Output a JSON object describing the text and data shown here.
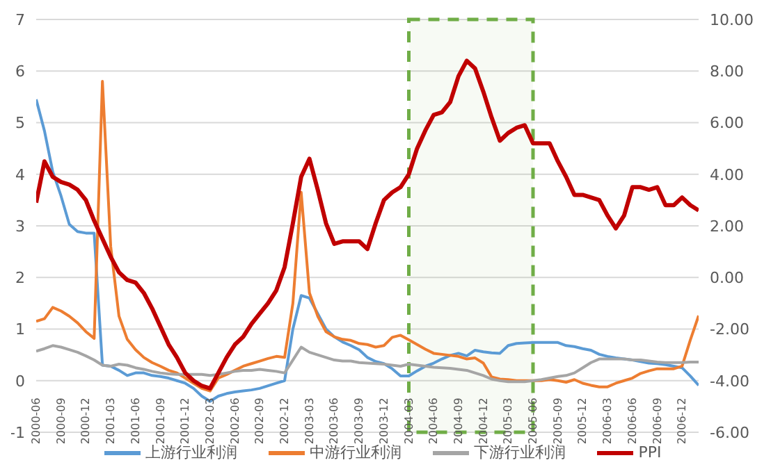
{
  "chart_data": {
    "type": "line",
    "categories": [
      "2000-06",
      null,
      null,
      "2000-09",
      null,
      null,
      "2000-12",
      null,
      null,
      "2001-03",
      null,
      null,
      "2001-06",
      null,
      null,
      "2001-09",
      null,
      null,
      "2001-12",
      null,
      null,
      "2002-03",
      null,
      null,
      "2002-06",
      null,
      null,
      "2002-09",
      null,
      null,
      "2002-12",
      null,
      null,
      "2003-03",
      null,
      null,
      "2003-06",
      null,
      null,
      "2003-09",
      null,
      null,
      "2003-12",
      null,
      null,
      "2004-03",
      null,
      null,
      "2004-06",
      null,
      null,
      "2004-09",
      null,
      null,
      "2004-12",
      null,
      null,
      "2005-03",
      null,
      null,
      "2005-06",
      null,
      null,
      "2005-09",
      null,
      null,
      "2005-12",
      null,
      null,
      "2006-03",
      null,
      null,
      "2006-06",
      null,
      null,
      "2006-09",
      null,
      null,
      "2006-12",
      null,
      null
    ],
    "series": [
      {
        "name": "上游行业利润",
        "color": "#5b9bd5",
        "values": [
          5.45,
          4.84,
          4.05,
          3.58,
          3.03,
          2.89,
          2.86,
          2.86,
          0.3,
          0.28,
          0.2,
          0.1,
          0.15,
          0.15,
          0.1,
          0.08,
          0.05,
          0.0,
          -0.05,
          -0.15,
          -0.3,
          -0.4,
          -0.3,
          -0.25,
          -0.22,
          -0.2,
          -0.18,
          -0.15,
          -0.1,
          -0.05,
          0.0,
          1.0,
          1.65,
          1.6,
          1.3,
          1.0,
          0.85,
          0.75,
          0.68,
          0.6,
          0.45,
          0.37,
          0.33,
          0.23,
          0.09,
          0.09,
          0.19,
          0.28,
          0.34,
          0.42,
          0.49,
          0.53,
          0.48,
          0.59,
          0.56,
          0.54,
          0.53,
          0.68,
          0.72,
          0.73,
          0.74,
          0.74,
          0.74,
          0.74,
          0.68,
          0.66,
          0.62,
          0.59,
          0.51,
          0.47,
          0.44,
          0.42,
          0.4,
          0.37,
          0.34,
          0.33,
          0.31,
          0.28,
          0.25,
          0.09,
          -0.09
        ]
      },
      {
        "name": "中游行业利润",
        "color": "#ed7d31",
        "values": [
          1.15,
          1.2,
          1.42,
          1.35,
          1.25,
          1.12,
          0.95,
          0.82,
          5.8,
          2.6,
          1.25,
          0.8,
          0.6,
          0.45,
          0.35,
          0.28,
          0.2,
          0.15,
          0.05,
          -0.05,
          -0.15,
          -0.2,
          0.05,
          0.12,
          0.2,
          0.28,
          0.33,
          0.38,
          0.43,
          0.47,
          0.45,
          1.5,
          3.65,
          1.7,
          1.25,
          0.95,
          0.85,
          0.8,
          0.78,
          0.72,
          0.7,
          0.65,
          0.68,
          0.84,
          0.88,
          0.79,
          0.7,
          0.61,
          0.53,
          0.51,
          0.49,
          0.47,
          0.42,
          0.44,
          0.34,
          0.07,
          0.03,
          0.02,
          0.0,
          0.0,
          0.0,
          0.0,
          0.02,
          0.0,
          -0.03,
          0.02,
          -0.05,
          -0.09,
          -0.12,
          -0.12,
          -0.05,
          0.0,
          0.05,
          0.14,
          0.19,
          0.23,
          0.23,
          0.23,
          0.28,
          0.79,
          1.26
        ]
      },
      {
        "name": "下游行业利润",
        "color": "#a5a5a5",
        "values": [
          0.57,
          0.62,
          0.68,
          0.65,
          0.6,
          0.55,
          0.48,
          0.4,
          0.3,
          0.28,
          0.32,
          0.3,
          0.25,
          0.22,
          0.18,
          0.15,
          0.13,
          0.12,
          0.12,
          0.12,
          0.12,
          0.1,
          0.12,
          0.15,
          0.18,
          0.2,
          0.2,
          0.22,
          0.2,
          0.18,
          0.15,
          0.4,
          0.65,
          0.55,
          0.5,
          0.45,
          0.4,
          0.38,
          0.38,
          0.35,
          0.34,
          0.33,
          0.32,
          0.3,
          0.28,
          0.32,
          0.3,
          0.28,
          0.26,
          0.25,
          0.24,
          0.22,
          0.2,
          0.15,
          0.1,
          0.03,
          0.0,
          -0.02,
          -0.02,
          -0.02,
          0.0,
          0.02,
          0.05,
          0.08,
          0.1,
          0.15,
          0.25,
          0.35,
          0.42,
          0.42,
          0.42,
          0.42,
          0.4,
          0.4,
          0.38,
          0.36,
          0.35,
          0.35,
          0.35,
          0.36,
          0.36
        ]
      },
      {
        "name": "PPI",
        "color": "#c00000",
        "axis": "y2",
        "values": [
          2.9,
          4.5,
          3.9,
          3.7,
          3.6,
          3.4,
          3.0,
          2.2,
          1.5,
          0.8,
          0.2,
          -0.1,
          -0.2,
          -0.6,
          -1.2,
          -1.9,
          -2.6,
          -3.1,
          -3.7,
          -4.0,
          -4.2,
          -4.3,
          -3.7,
          -3.1,
          -2.6,
          -2.3,
          -1.8,
          -1.4,
          -1.0,
          -0.5,
          0.4,
          2.1,
          3.9,
          4.6,
          3.4,
          2.1,
          1.3,
          1.4,
          1.4,
          1.4,
          1.1,
          2.1,
          3.0,
          3.3,
          3.5,
          4.0,
          5.0,
          5.7,
          6.3,
          6.4,
          6.8,
          7.8,
          8.4,
          8.1,
          7.2,
          6.2,
          5.3,
          5.6,
          5.8,
          5.9,
          5.2,
          5.2,
          5.2,
          4.5,
          3.9,
          3.2,
          3.2,
          3.1,
          3.0,
          2.4,
          1.9,
          2.4,
          3.5,
          3.5,
          3.4,
          3.5,
          2.8,
          2.8,
          3.1,
          2.8,
          2.6
        ]
      }
    ],
    "ylim": [
      -1,
      7
    ],
    "yticks": [
      -1,
      0,
      1,
      2,
      3,
      4,
      5,
      6,
      7
    ],
    "y2lim": [
      -6,
      10
    ],
    "y2ticks": [
      {
        "value": -6,
        "label": "-6.00"
      },
      {
        "value": -4,
        "label": "-4.00"
      },
      {
        "value": -2,
        "label": "-2.00"
      },
      {
        "value": 0,
        "label": "0.00"
      },
      {
        "value": 2,
        "label": "2.00"
      },
      {
        "value": 4,
        "label": "4.00"
      },
      {
        "value": 6,
        "label": "6.00"
      },
      {
        "value": 8,
        "label": "8.00"
      },
      {
        "value": 10,
        "label": "10.00"
      }
    ],
    "bands": [
      {
        "axis": "x",
        "from": "2004-03",
        "to": "2005-06",
        "color": "#70ad47"
      }
    ],
    "grid": "y",
    "legend": "bottom",
    "marker": "none",
    "line_style": "solid"
  }
}
